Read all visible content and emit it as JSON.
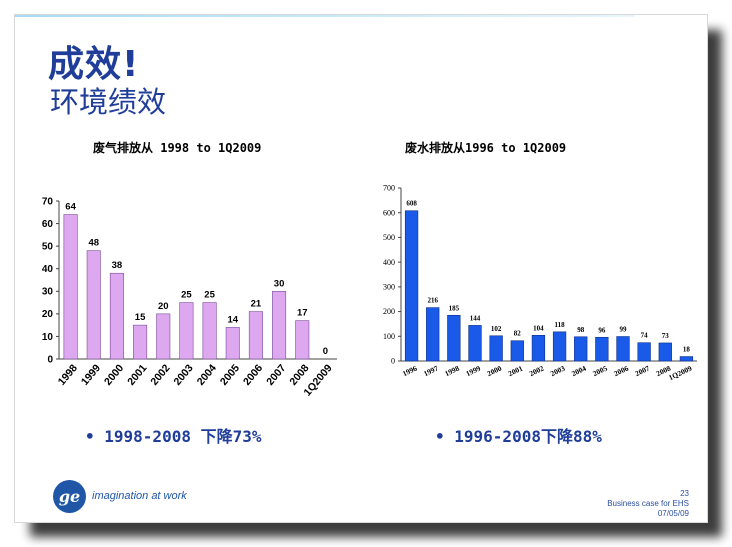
{
  "slide": {
    "title": "成效!",
    "subtitle": "环境绩效",
    "brand_color": "#1f3d99",
    "logo_icon": "ge-logo",
    "tagline": "imagination at work",
    "footer": {
      "page_number": "23",
      "doc_title": "Business case for EHS",
      "date": "07/05/09"
    }
  },
  "bullets": {
    "left": "• 1998-2008 下降73%",
    "right": "• 1996-2008下降88%"
  },
  "chart_data": [
    {
      "type": "bar",
      "title": "废气排放从 1998 to 1Q2009",
      "categories": [
        "1998",
        "1999",
        "2000",
        "2001",
        "2002",
        "2003",
        "2004",
        "2005",
        "2006",
        "2007",
        "2008",
        "1Q2009"
      ],
      "values": [
        64,
        48,
        38,
        15,
        20,
        25,
        25,
        14,
        21,
        30,
        17,
        0
      ],
      "ylim": [
        0,
        70
      ],
      "yticks": [
        0,
        10,
        20,
        30,
        40,
        50,
        60,
        70
      ],
      "bar_color": "#dda8f0",
      "grid": false
    },
    {
      "type": "bar",
      "title": "废水排放从1996 to 1Q2009",
      "categories": [
        "1996",
        "1997",
        "1998",
        "1999",
        "2000",
        "2001",
        "2002",
        "2003",
        "2004",
        "2005",
        "2006",
        "2007",
        "2008",
        "1Q2009"
      ],
      "values": [
        608,
        216,
        185,
        144,
        102,
        82,
        104,
        118,
        98,
        96,
        99,
        74,
        73,
        18
      ],
      "ylim": [
        0,
        700
      ],
      "yticks": [
        0,
        100,
        200,
        300,
        400,
        500,
        600,
        700
      ],
      "bar_color": "#1a5ae8",
      "grid": false
    }
  ]
}
